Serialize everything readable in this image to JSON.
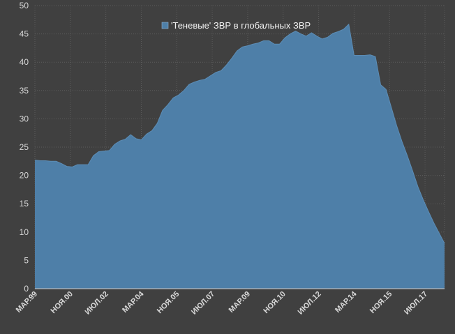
{
  "chart_data": {
    "type": "area",
    "title": "",
    "xlabel": "",
    "ylabel": "",
    "ylim": [
      0,
      50
    ],
    "yticks": [
      0,
      5,
      10,
      15,
      20,
      25,
      30,
      35,
      40,
      45,
      50
    ],
    "xtick_labels": [
      "МАР.99",
      "НОЯ.00",
      "ИЮЛ.02",
      "МАР.04",
      "НОЯ.05",
      "ИЮЛ.07",
      "МАР.09",
      "НОЯ.10",
      "ИЮЛ.12",
      "МАР.14",
      "НОЯ.15",
      "ИЮЛ.17"
    ],
    "legend": "top-center",
    "grid": true,
    "series": [
      {
        "name": "'Теневые' ЗВР в глобальных ЗВР",
        "color": "#4e7fa8",
        "x": [
          "1999-03",
          "1999-06",
          "1999-09",
          "1999-12",
          "2000-03",
          "2000-06",
          "2000-09",
          "2000-12",
          "2001-03",
          "2001-06",
          "2001-09",
          "2001-12",
          "2002-03",
          "2002-06",
          "2002-09",
          "2002-12",
          "2003-03",
          "2003-06",
          "2003-09",
          "2003-12",
          "2004-03",
          "2004-06",
          "2004-09",
          "2004-12",
          "2005-03",
          "2005-06",
          "2005-09",
          "2005-12",
          "2006-03",
          "2006-06",
          "2006-09",
          "2006-12",
          "2007-03",
          "2007-06",
          "2007-09",
          "2007-12",
          "2008-03",
          "2008-06",
          "2008-09",
          "2008-12",
          "2009-03",
          "2009-06",
          "2009-09",
          "2009-12",
          "2010-03",
          "2010-06",
          "2010-09",
          "2010-12",
          "2011-03",
          "2011-06",
          "2011-09",
          "2011-12",
          "2012-03",
          "2012-06",
          "2012-09",
          "2012-12",
          "2013-03",
          "2013-06",
          "2013-09",
          "2013-12",
          "2014-03",
          "2014-06",
          "2014-09",
          "2014-12",
          "2015-03",
          "2015-06",
          "2015-09",
          "2015-12",
          "2016-03",
          "2016-06",
          "2016-09",
          "2016-12",
          "2017-03",
          "2017-06",
          "2017-09",
          "2017-12",
          "2018-03",
          "2018-06"
        ],
        "values": [
          22.7,
          22.6,
          22.6,
          22.5,
          22.5,
          22.1,
          21.6,
          21.5,
          21.9,
          21.9,
          21.9,
          23.5,
          24.2,
          24.3,
          24.4,
          25.5,
          26.1,
          26.4,
          27.2,
          26.5,
          26.3,
          27.3,
          27.9,
          29.2,
          31.5,
          32.5,
          33.7,
          34.2,
          35.0,
          36.1,
          36.5,
          36.8,
          37.0,
          37.6,
          38.2,
          38.5,
          39.5,
          40.7,
          42.0,
          42.7,
          42.9,
          43.2,
          43.4,
          43.8,
          43.8,
          43.2,
          43.2,
          44.3,
          45.0,
          45.5,
          45.0,
          44.6,
          45.2,
          44.6,
          44.1,
          44.4,
          45.1,
          45.4,
          45.8,
          46.7,
          41.2,
          41.2,
          41.2,
          41.3,
          41.0,
          36.0,
          35.2,
          32.0,
          28.8,
          26.0,
          23.5,
          20.8,
          18.0,
          15.7,
          13.6,
          11.6,
          9.8,
          8.0
        ]
      }
    ]
  }
}
